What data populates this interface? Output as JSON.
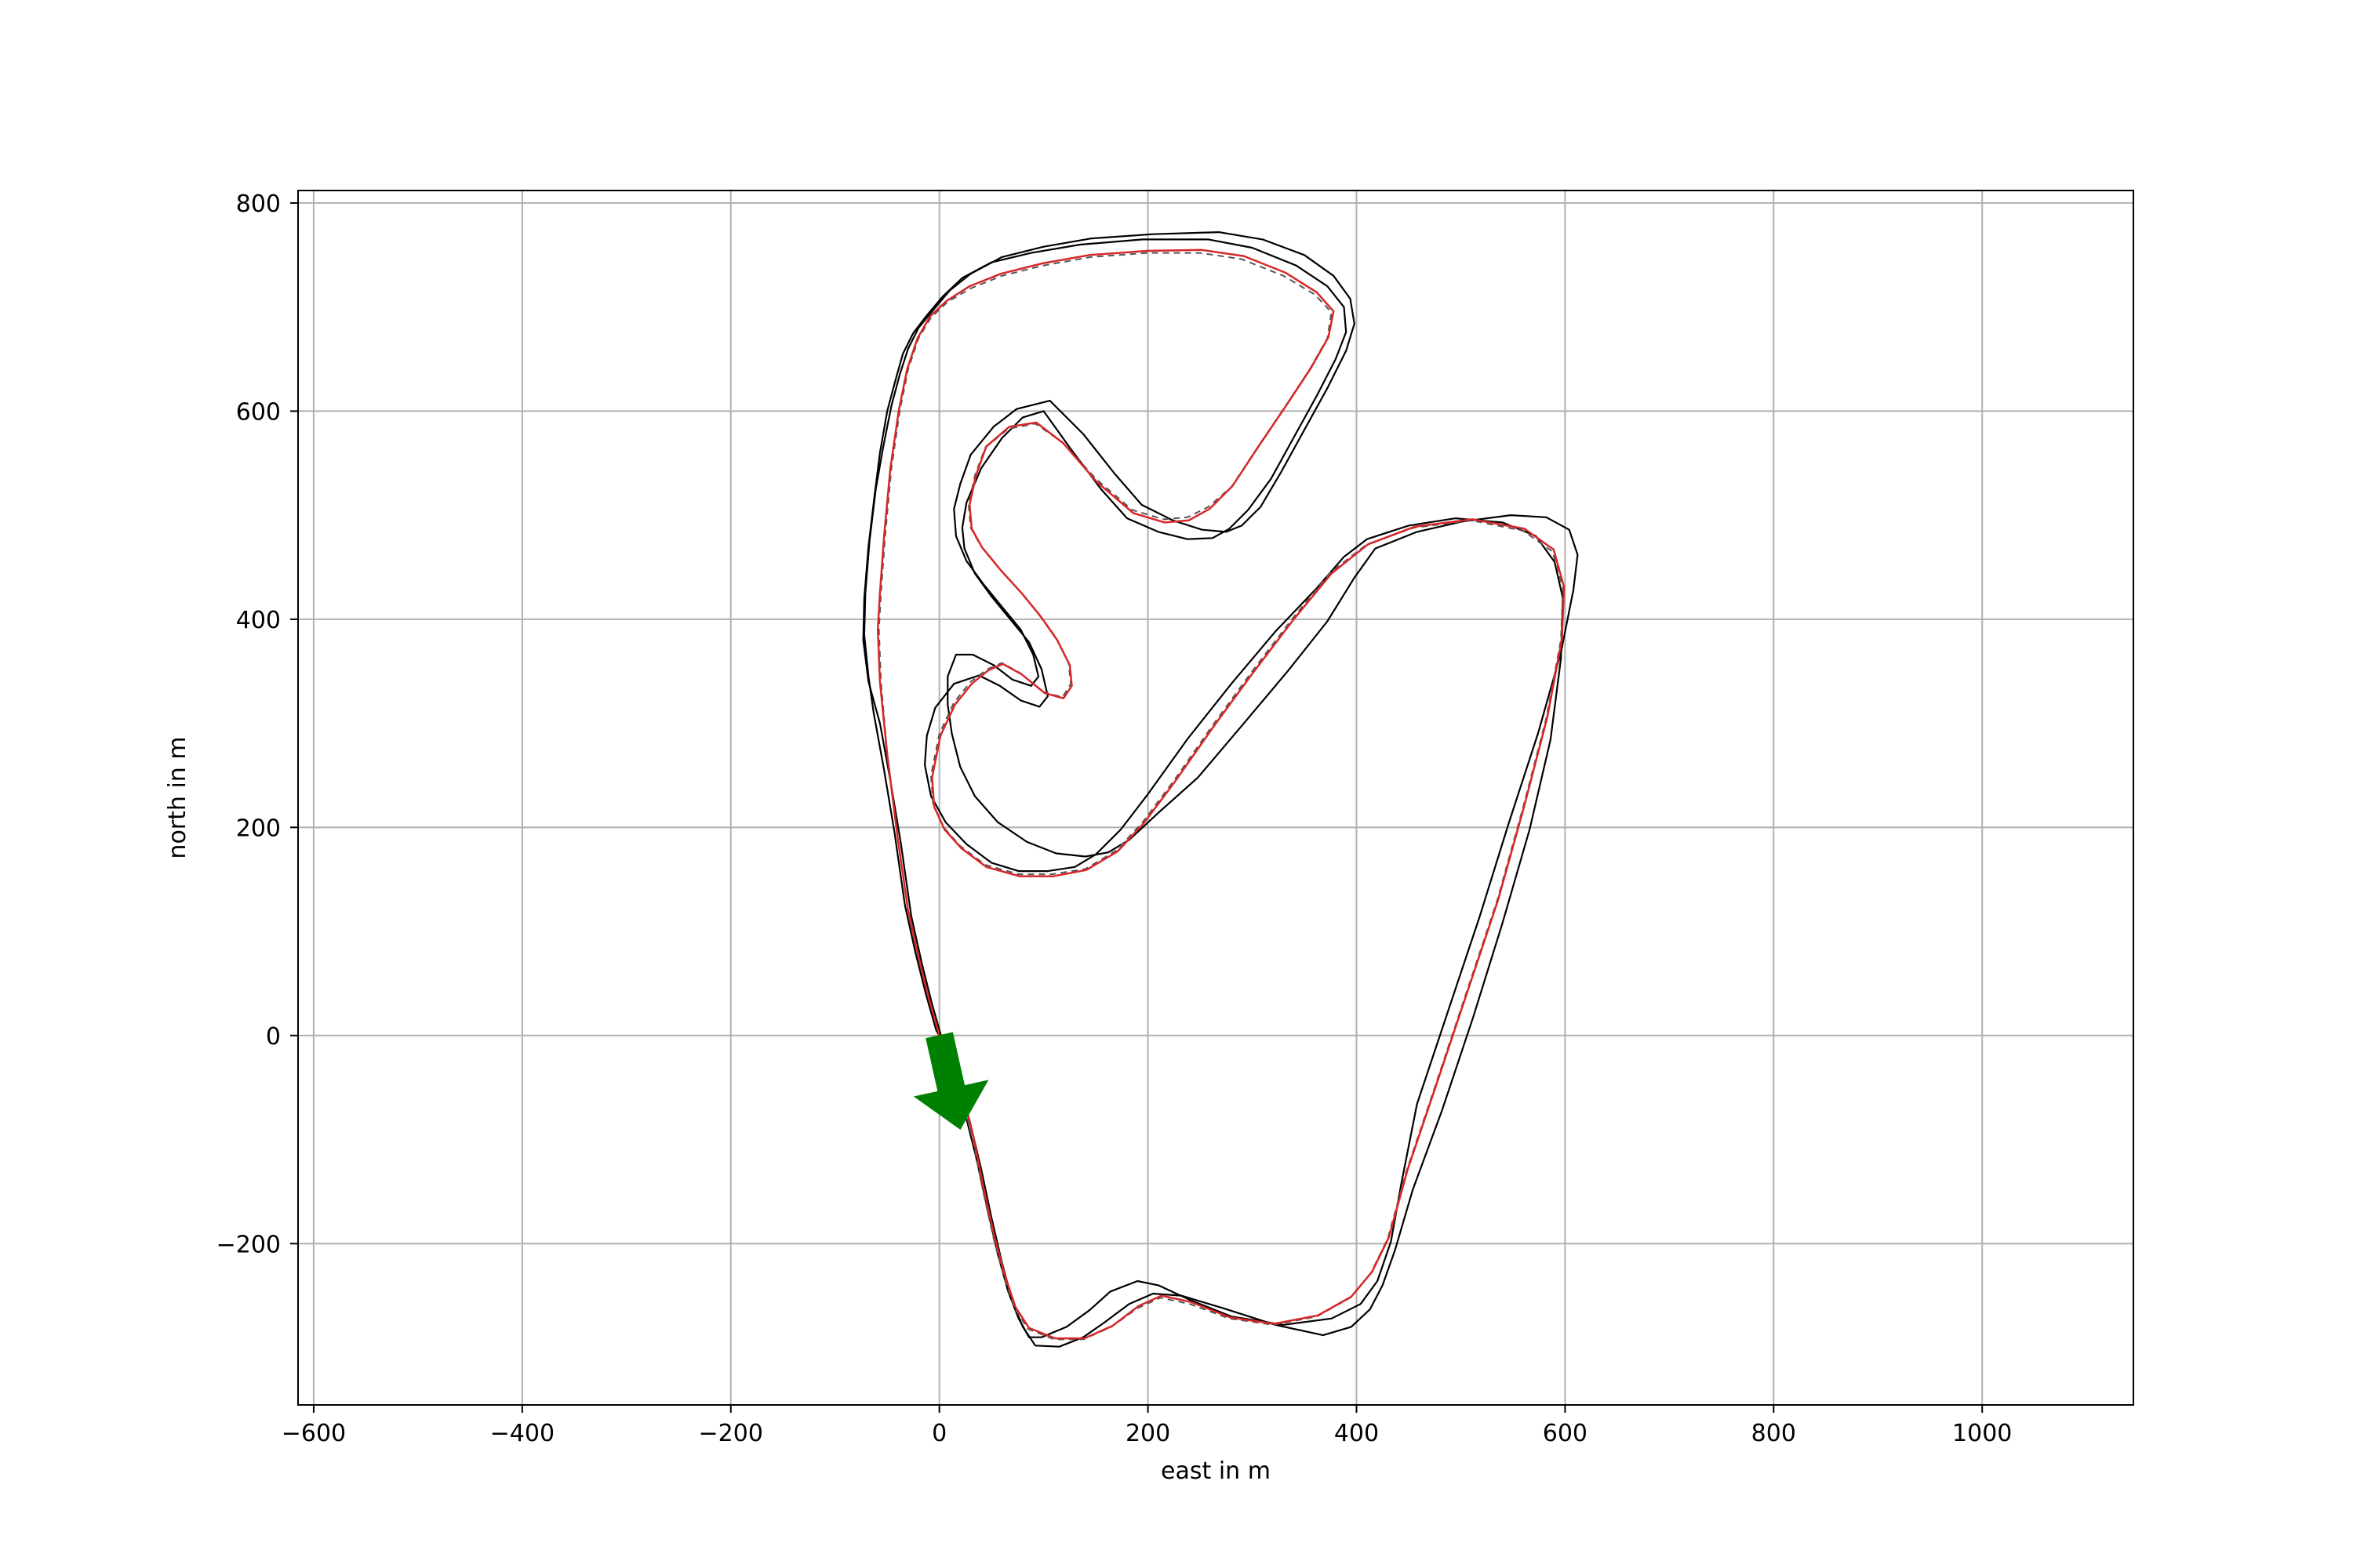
{
  "chart_data": {
    "type": "line",
    "title": "",
    "xlabel": "east in m",
    "ylabel": "north in m",
    "xlim": [
      -615,
      1145
    ],
    "ylim": [
      -355,
      812
    ],
    "xticks": [
      -600,
      -400,
      -200,
      0,
      200,
      400,
      600,
      800,
      1000
    ],
    "yticks": [
      -200,
      0,
      200,
      400,
      600,
      800
    ],
    "xtick_labels": [
      "−600",
      "−400",
      "−200",
      "0",
      "200",
      "400",
      "600",
      "800",
      "1000"
    ],
    "ytick_labels": [
      "−200",
      "0",
      "200",
      "400",
      "600",
      "800"
    ],
    "grid": true,
    "colors": {
      "track_boundary": "#000000",
      "reference_line": "#555555",
      "driven_line": "#d62728",
      "start_arrow": "#008000",
      "grid": "#b0b0b0"
    },
    "series": [
      {
        "name": "",
        "role": "reference line (dashed)",
        "x": [
          0,
          -10,
          -20,
          -30,
          -40,
          -50,
          -56,
          -58,
          -56,
          -52,
          -46,
          -38,
          -30,
          -20,
          -8,
          8,
          30,
          60,
          100,
          145,
          200,
          250,
          290,
          330,
          360,
          376,
          372,
          355,
          332,
          305,
          280,
          258,
          238,
          215,
          185,
          150,
          118,
          92,
          66,
          44,
          34,
          28,
          30,
          40,
          58,
          78,
          96,
          112,
          124,
          126,
          118,
          100,
          78,
          60,
          46,
          30,
          14,
          0,
          -8,
          -6,
          4,
          20,
          44,
          76,
          108,
          140,
          170,
          195,
          225,
          262,
          300,
          338,
          375,
          410,
          455,
          510,
          560,
          588,
          598,
          596,
          582,
          560,
          535,
          505,
          475,
          448,
          430,
          414,
          394,
          362,
          320,
          278,
          240,
          212,
          190,
          165,
          138,
          110,
          85,
          72,
          62,
          52,
          42,
          32,
          22,
          12,
          6,
          0
        ],
        "y": [
          0,
          35,
          75,
          120,
          190,
          270,
          340,
          390,
          425,
          480,
          545,
          600,
          640,
          670,
          690,
          705,
          718,
          730,
          740,
          748,
          752,
          752,
          746,
          730,
          712,
          695,
          670,
          640,
          605,
          565,
          527,
          508,
          498,
          496,
          505,
          535,
          570,
          588,
          583,
          565,
          538,
          510,
          488,
          470,
          448,
          426,
          404,
          382,
          358,
          338,
          325,
          330,
          348,
          358,
          352,
          340,
          320,
          290,
          250,
          222,
          200,
          182,
          164,
          155,
          155,
          160,
          178,
          205,
          245,
          298,
          350,
          400,
          445,
          472,
          488,
          495,
          485,
          465,
          430,
          380,
          305,
          220,
          130,
          40,
          -50,
          -130,
          -195,
          -228,
          -252,
          -270,
          -278,
          -272,
          -258,
          -252,
          -262,
          -280,
          -292,
          -292,
          -282,
          -262,
          -232,
          -195,
          -150,
          -100,
          -60,
          -30,
          -10,
          0
        ]
      },
      {
        "name": "",
        "role": "driven path (red)",
        "x": [
          0,
          -10,
          -20,
          -30,
          -40,
          -50,
          -57,
          -59,
          -57,
          -53,
          -47,
          -39,
          -31,
          -21,
          -9,
          7,
          29,
          59,
          99,
          144,
          199,
          251,
          292,
          332,
          362,
          378,
          373,
          356,
          333,
          306,
          281,
          259,
          239,
          216,
          186,
          151,
          119,
          93,
          67,
          45,
          35,
          29,
          31,
          41,
          59,
          79,
          97,
          113,
          125,
          127,
          119,
          101,
          79,
          61,
          47,
          31,
          15,
          1,
          -7,
          -5,
          5,
          21,
          45,
          77,
          109,
          141,
          171,
          196,
          226,
          263,
          301,
          339,
          376,
          411,
          456,
          511,
          561,
          589,
          599,
          597,
          583,
          561,
          536,
          506,
          476,
          449,
          431,
          415,
          395,
          363,
          321,
          279,
          241,
          213,
          191,
          166,
          139,
          111,
          86,
          73,
          63,
          53,
          43,
          33,
          23,
          13,
          7,
          0
        ],
        "y": [
          0,
          35,
          75,
          120,
          190,
          270,
          340,
          390,
          425,
          480,
          545,
          600,
          640,
          670,
          691,
          706,
          720,
          732,
          742,
          750,
          754,
          755,
          749,
          733,
          714,
          696,
          671,
          641,
          606,
          566,
          528,
          506,
          495,
          493,
          502,
          532,
          569,
          589,
          585,
          566,
          538,
          510,
          487,
          469,
          447,
          425,
          403,
          380,
          356,
          336,
          324,
          329,
          347,
          357,
          351,
          338,
          318,
          288,
          248,
          220,
          198,
          180,
          162,
          153,
          153,
          159,
          177,
          204,
          244,
          297,
          349,
          399,
          444,
          472,
          489,
          496,
          487,
          467,
          431,
          381,
          306,
          221,
          131,
          41,
          -49,
          -129,
          -194,
          -227,
          -251,
          -269,
          -277,
          -271,
          -256,
          -250,
          -260,
          -279,
          -291,
          -291,
          -281,
          -261,
          -231,
          -194,
          -149,
          -99,
          -59,
          -29,
          -9,
          0
        ]
      },
      {
        "name": "",
        "role": "outer track boundary",
        "x": [
          3,
          -7,
          -17,
          -27,
          -37,
          -47,
          -57,
          -68,
          -73,
          -72,
          -68,
          -62,
          -57,
          -50,
          -42,
          -35,
          -25,
          -12,
          3,
          22,
          50,
          88,
          135,
          195,
          258,
          300,
          342,
          372,
          388,
          390,
          380,
          362,
          340,
          318,
          296,
          278,
          262,
          238,
          210,
          180,
          155,
          125,
          100,
          80,
          60,
          40,
          26,
          22,
          24,
          34,
          50,
          68,
          86,
          98,
          104,
          96,
          78,
          58,
          38,
          14,
          -4,
          -12,
          -14,
          -8,
          6,
          26,
          50,
          76,
          104,
          130,
          150,
          174,
          200,
          238,
          280,
          322,
          362,
          388,
          410,
          450,
          495,
          540,
          572,
          590,
          598,
          596,
          586,
          566,
          540,
          512,
          482,
          454,
          437,
          425,
          413,
          395,
          368,
          322,
          272,
          232,
          205,
          182,
          158,
          138,
          115,
          92,
          80,
          70,
          60,
          50,
          40,
          30,
          20,
          12,
          3
        ],
        "y": [
          -5,
          30,
          70,
          115,
          185,
          245,
          300,
          340,
          380,
          420,
          470,
          520,
          560,
          600,
          630,
          655,
          675,
          692,
          710,
          728,
          743,
          752,
          760,
          765,
          765,
          757,
          740,
          720,
          700,
          676,
          650,
          615,
          575,
          535,
          505,
          487,
          478,
          477,
          484,
          497,
          525,
          565,
          600,
          594,
          574,
          545,
          512,
          488,
          468,
          444,
          422,
          400,
          378,
          352,
          326,
          316,
          322,
          336,
          346,
          338,
          315,
          288,
          260,
          230,
          205,
          184,
          166,
          158,
          158,
          162,
          174,
          198,
          232,
          285,
          338,
          388,
          430,
          460,
          477,
          490,
          497,
          493,
          480,
          455,
          420,
          362,
          284,
          198,
          108,
          18,
          -72,
          -148,
          -206,
          -240,
          -263,
          -280,
          -288,
          -278,
          -262,
          -250,
          -248,
          -258,
          -276,
          -290,
          -299,
          -298,
          -280,
          -255,
          -218,
          -175,
          -128,
          -86,
          -48,
          -20,
          -5
        ]
      },
      {
        "name": "",
        "role": "inner track boundary",
        "x": [
          -3,
          -13,
          -23,
          -33,
          -43,
          -53,
          -63,
          -68,
          -72,
          -71,
          -67,
          -61,
          -54,
          -46,
          -38,
          -30,
          -20,
          -6,
          10,
          30,
          60,
          100,
          146,
          205,
          268,
          310,
          350,
          378,
          394,
          398,
          390,
          372,
          350,
          328,
          308,
          290,
          275,
          252,
          224,
          194,
          168,
          138,
          106,
          74,
          52,
          30,
          20,
          14,
          16,
          26,
          42,
          60,
          78,
          90,
          95,
          88,
          70,
          52,
          32,
          16,
          8,
          8,
          12,
          20,
          34,
          56,
          84,
          112,
          140,
          162,
          182,
          210,
          248,
          292,
          334,
          372,
          398,
          418,
          458,
          502,
          548,
          582,
          604,
          612,
          608,
          596,
          574,
          546,
          518,
          488,
          458,
          443,
          433,
          420,
          404,
          376,
          330,
          280,
          240,
          210,
          190,
          164,
          144,
          122,
          98,
          86,
          76,
          66,
          56,
          46,
          36,
          26,
          16,
          8,
          -3
        ],
        "y": [
          5,
          40,
          80,
          125,
          195,
          255,
          310,
          345,
          385,
          425,
          475,
          525,
          565,
          605,
          635,
          660,
          680,
          697,
          716,
          732,
          748,
          758,
          766,
          770,
          772,
          765,
          750,
          730,
          708,
          684,
          658,
          622,
          582,
          542,
          508,
          490,
          484,
          486,
          495,
          510,
          540,
          578,
          610,
          602,
          585,
          558,
          530,
          506,
          480,
          456,
          434,
          412,
          390,
          366,
          345,
          336,
          342,
          356,
          366,
          366,
          345,
          318,
          290,
          258,
          230,
          205,
          186,
          175,
          172,
          176,
          188,
          214,
          248,
          300,
          350,
          398,
          440,
          468,
          484,
          494,
          500,
          498,
          486,
          462,
          428,
          368,
          290,
          204,
          114,
          24,
          -66,
          -142,
          -198,
          -236,
          -258,
          -272,
          -278,
          -270,
          -254,
          -240,
          -236,
          -246,
          -264,
          -280,
          -290,
          -290,
          -272,
          -246,
          -210,
          -166,
          -120,
          -80,
          -42,
          -14,
          5
        ]
      }
    ],
    "start_marker": {
      "type": "arrow",
      "x": 0,
      "y": 0,
      "dx": 20,
      "dy": -90
    }
  }
}
